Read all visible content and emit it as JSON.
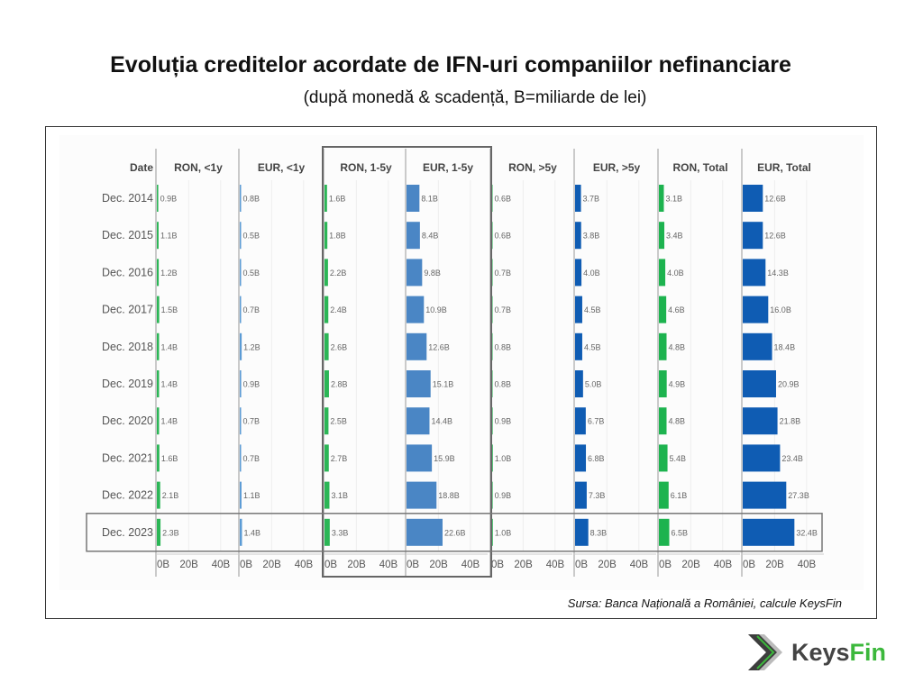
{
  "title": "Evoluția creditelor acordate de IFN-uri companiilor nefinanciare",
  "subtitle": "(după monedă & scadență, B=miliarde de lei)",
  "source": "Sursa: Banca Națională a României, calcule KeysFin",
  "logo": {
    "part1": "Keys",
    "part2": "Fin"
  },
  "chart_data": {
    "type": "bar",
    "orientation": "horizontal small multiples",
    "date_header": "Date",
    "categories": [
      "Dec. 2014",
      "Dec. 2015",
      "Dec. 2016",
      "Dec. 2017",
      "Dec. 2018",
      "Dec. 2019",
      "Dec. 2020",
      "Dec. 2021",
      "Dec. 2022",
      "Dec. 2023"
    ],
    "unit": "B",
    "xlim": [
      0,
      52
    ],
    "x_ticks": [
      "0B",
      "20B",
      "40B"
    ],
    "highlighted_series": [
      "RON, 1-5y",
      "EUR, 1-5y"
    ],
    "highlighted_category": "Dec. 2023",
    "series": [
      {
        "name": "RON, <1y",
        "color": "#2bb656",
        "values": [
          0.9,
          1.1,
          1.2,
          1.5,
          1.4,
          1.4,
          1.4,
          1.6,
          2.1,
          2.3
        ]
      },
      {
        "name": "EUR, <1y",
        "color": "#5b9bd5",
        "values": [
          0.8,
          0.5,
          0.5,
          0.7,
          1.2,
          0.9,
          0.7,
          0.7,
          1.1,
          1.4
        ]
      },
      {
        "name": "RON, 1-5y",
        "color": "#2bb656",
        "values": [
          1.6,
          1.8,
          2.2,
          2.4,
          2.6,
          2.8,
          2.5,
          2.7,
          3.1,
          3.3
        ]
      },
      {
        "name": "EUR, 1-5y",
        "color": "#4a86c5",
        "values": [
          8.1,
          8.4,
          9.8,
          10.9,
          12.6,
          15.1,
          14.4,
          15.9,
          18.8,
          22.6
        ]
      },
      {
        "name": "RON, >5y",
        "color": "#2bb656",
        "values": [
          0.6,
          0.6,
          0.7,
          0.7,
          0.8,
          0.8,
          0.9,
          1.0,
          0.9,
          1.0
        ]
      },
      {
        "name": "EUR, >5y",
        "color": "#0f5cb3",
        "values": [
          3.7,
          3.8,
          4.0,
          4.5,
          4.5,
          5.0,
          6.7,
          6.8,
          7.3,
          8.3
        ]
      },
      {
        "name": "RON, Total",
        "color": "#1db34f",
        "values": [
          3.1,
          3.4,
          4.0,
          4.6,
          4.8,
          4.9,
          4.8,
          5.4,
          6.1,
          6.5
        ]
      },
      {
        "name": "EUR, Total",
        "color": "#0f5cb3",
        "values": [
          12.6,
          12.6,
          14.3,
          16.0,
          18.4,
          20.9,
          21.8,
          23.4,
          27.3,
          32.4
        ]
      }
    ]
  }
}
